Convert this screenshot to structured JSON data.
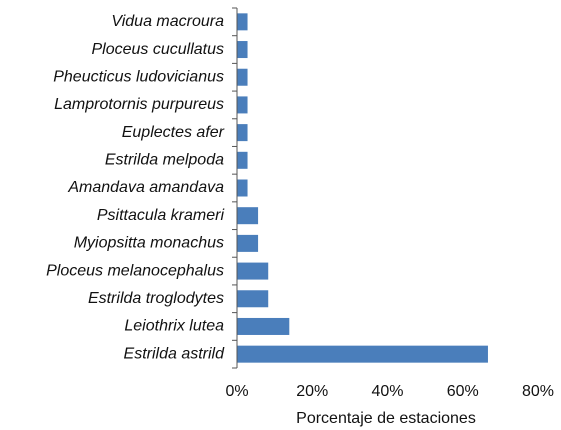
{
  "chart_data": {
    "type": "bar",
    "orientation": "horizontal",
    "x_label": "Porcentaje de estaciones",
    "categories": [
      "Vidua macroura",
      "Ploceus cucullatus",
      "Pheucticus ludovicianus",
      "Lamprotornis purpureus",
      "Euplectes afer",
      "Estrilda melpoda",
      "Amandava amandava",
      "Psittacula krameri",
      "Myiopsitta monachus",
      "Ploceus melanocephalus",
      "Estrilda troglodytes",
      "Leiothrix lutea",
      "Estrilda astrild"
    ],
    "values": [
      2.8,
      2.8,
      2.8,
      2.8,
      2.8,
      2.8,
      2.8,
      5.6,
      5.6,
      8.3,
      8.3,
      13.9,
      66.7
    ],
    "color": "#4a7ebb",
    "xlim": [
      0,
      80
    ],
    "xticks": [
      {
        "value": 0,
        "label": "0%"
      },
      {
        "value": 20,
        "label": "20%"
      },
      {
        "value": 40,
        "label": "40%"
      },
      {
        "value": 60,
        "label": "60%"
      },
      {
        "value": 80,
        "label": "80%"
      }
    ]
  }
}
